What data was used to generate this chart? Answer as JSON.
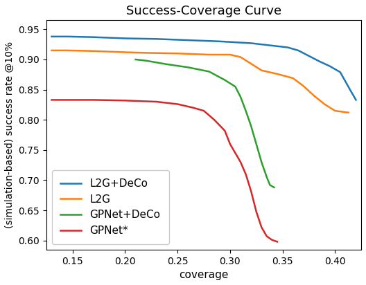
{
  "title": "Success-Coverage Curve",
  "xlabel": "coverage",
  "ylabel": "(simulation-based) success rate @10%",
  "xlim": [
    0.125,
    0.425
  ],
  "ylim": [
    0.585,
    0.965
  ],
  "xticks": [
    0.15,
    0.2,
    0.25,
    0.3,
    0.35,
    0.4
  ],
  "yticks": [
    0.6,
    0.65,
    0.7,
    0.75,
    0.8,
    0.85,
    0.9,
    0.95
  ],
  "curves": {
    "L2G+DeCo": {
      "color": "#1f77b4",
      "x": [
        0.13,
        0.145,
        0.17,
        0.2,
        0.23,
        0.26,
        0.29,
        0.32,
        0.34,
        0.355,
        0.365,
        0.375,
        0.385,
        0.395,
        0.405,
        0.415,
        0.42
      ],
      "y": [
        0.938,
        0.938,
        0.937,
        0.935,
        0.934,
        0.932,
        0.93,
        0.927,
        0.923,
        0.92,
        0.915,
        0.906,
        0.897,
        0.889,
        0.879,
        0.848,
        0.833
      ]
    },
    "L2G": {
      "color": "#ff7f0e",
      "x": [
        0.13,
        0.145,
        0.17,
        0.2,
        0.22,
        0.25,
        0.28,
        0.3,
        0.31,
        0.32,
        0.33,
        0.345,
        0.36,
        0.37,
        0.38,
        0.39,
        0.4,
        0.413
      ],
      "y": [
        0.915,
        0.915,
        0.914,
        0.912,
        0.911,
        0.91,
        0.908,
        0.908,
        0.904,
        0.893,
        0.882,
        0.876,
        0.869,
        0.856,
        0.84,
        0.826,
        0.815,
        0.812
      ]
    },
    "GPNet+DeCo": {
      "color": "#2ca02c",
      "x": [
        0.21,
        0.22,
        0.24,
        0.26,
        0.28,
        0.295,
        0.305,
        0.31,
        0.315,
        0.32,
        0.325,
        0.33,
        0.335,
        0.338,
        0.342
      ],
      "y": [
        0.9,
        0.898,
        0.892,
        0.887,
        0.88,
        0.866,
        0.855,
        0.838,
        0.815,
        0.79,
        0.76,
        0.73,
        0.705,
        0.692,
        0.688
      ]
    },
    "GPNet*": {
      "color": "#d62728",
      "x": [
        0.13,
        0.145,
        0.17,
        0.2,
        0.23,
        0.25,
        0.265,
        0.275,
        0.285,
        0.295,
        0.3,
        0.305,
        0.31,
        0.315,
        0.32,
        0.325,
        0.33,
        0.335,
        0.34,
        0.345
      ],
      "y": [
        0.833,
        0.833,
        0.833,
        0.832,
        0.83,
        0.826,
        0.82,
        0.815,
        0.8,
        0.782,
        0.76,
        0.745,
        0.73,
        0.71,
        0.682,
        0.648,
        0.622,
        0.607,
        0.601,
        0.598
      ]
    }
  },
  "legend_order": [
    "L2G+DeCo",
    "L2G",
    "GPNet+DeCo",
    "GPNet*"
  ],
  "legend_loc": "lower left",
  "title_fontsize": 13,
  "label_fontsize": 11,
  "ylabel_fontsize": 10,
  "legend_fontsize": 11,
  "tick_fontsize": 10
}
